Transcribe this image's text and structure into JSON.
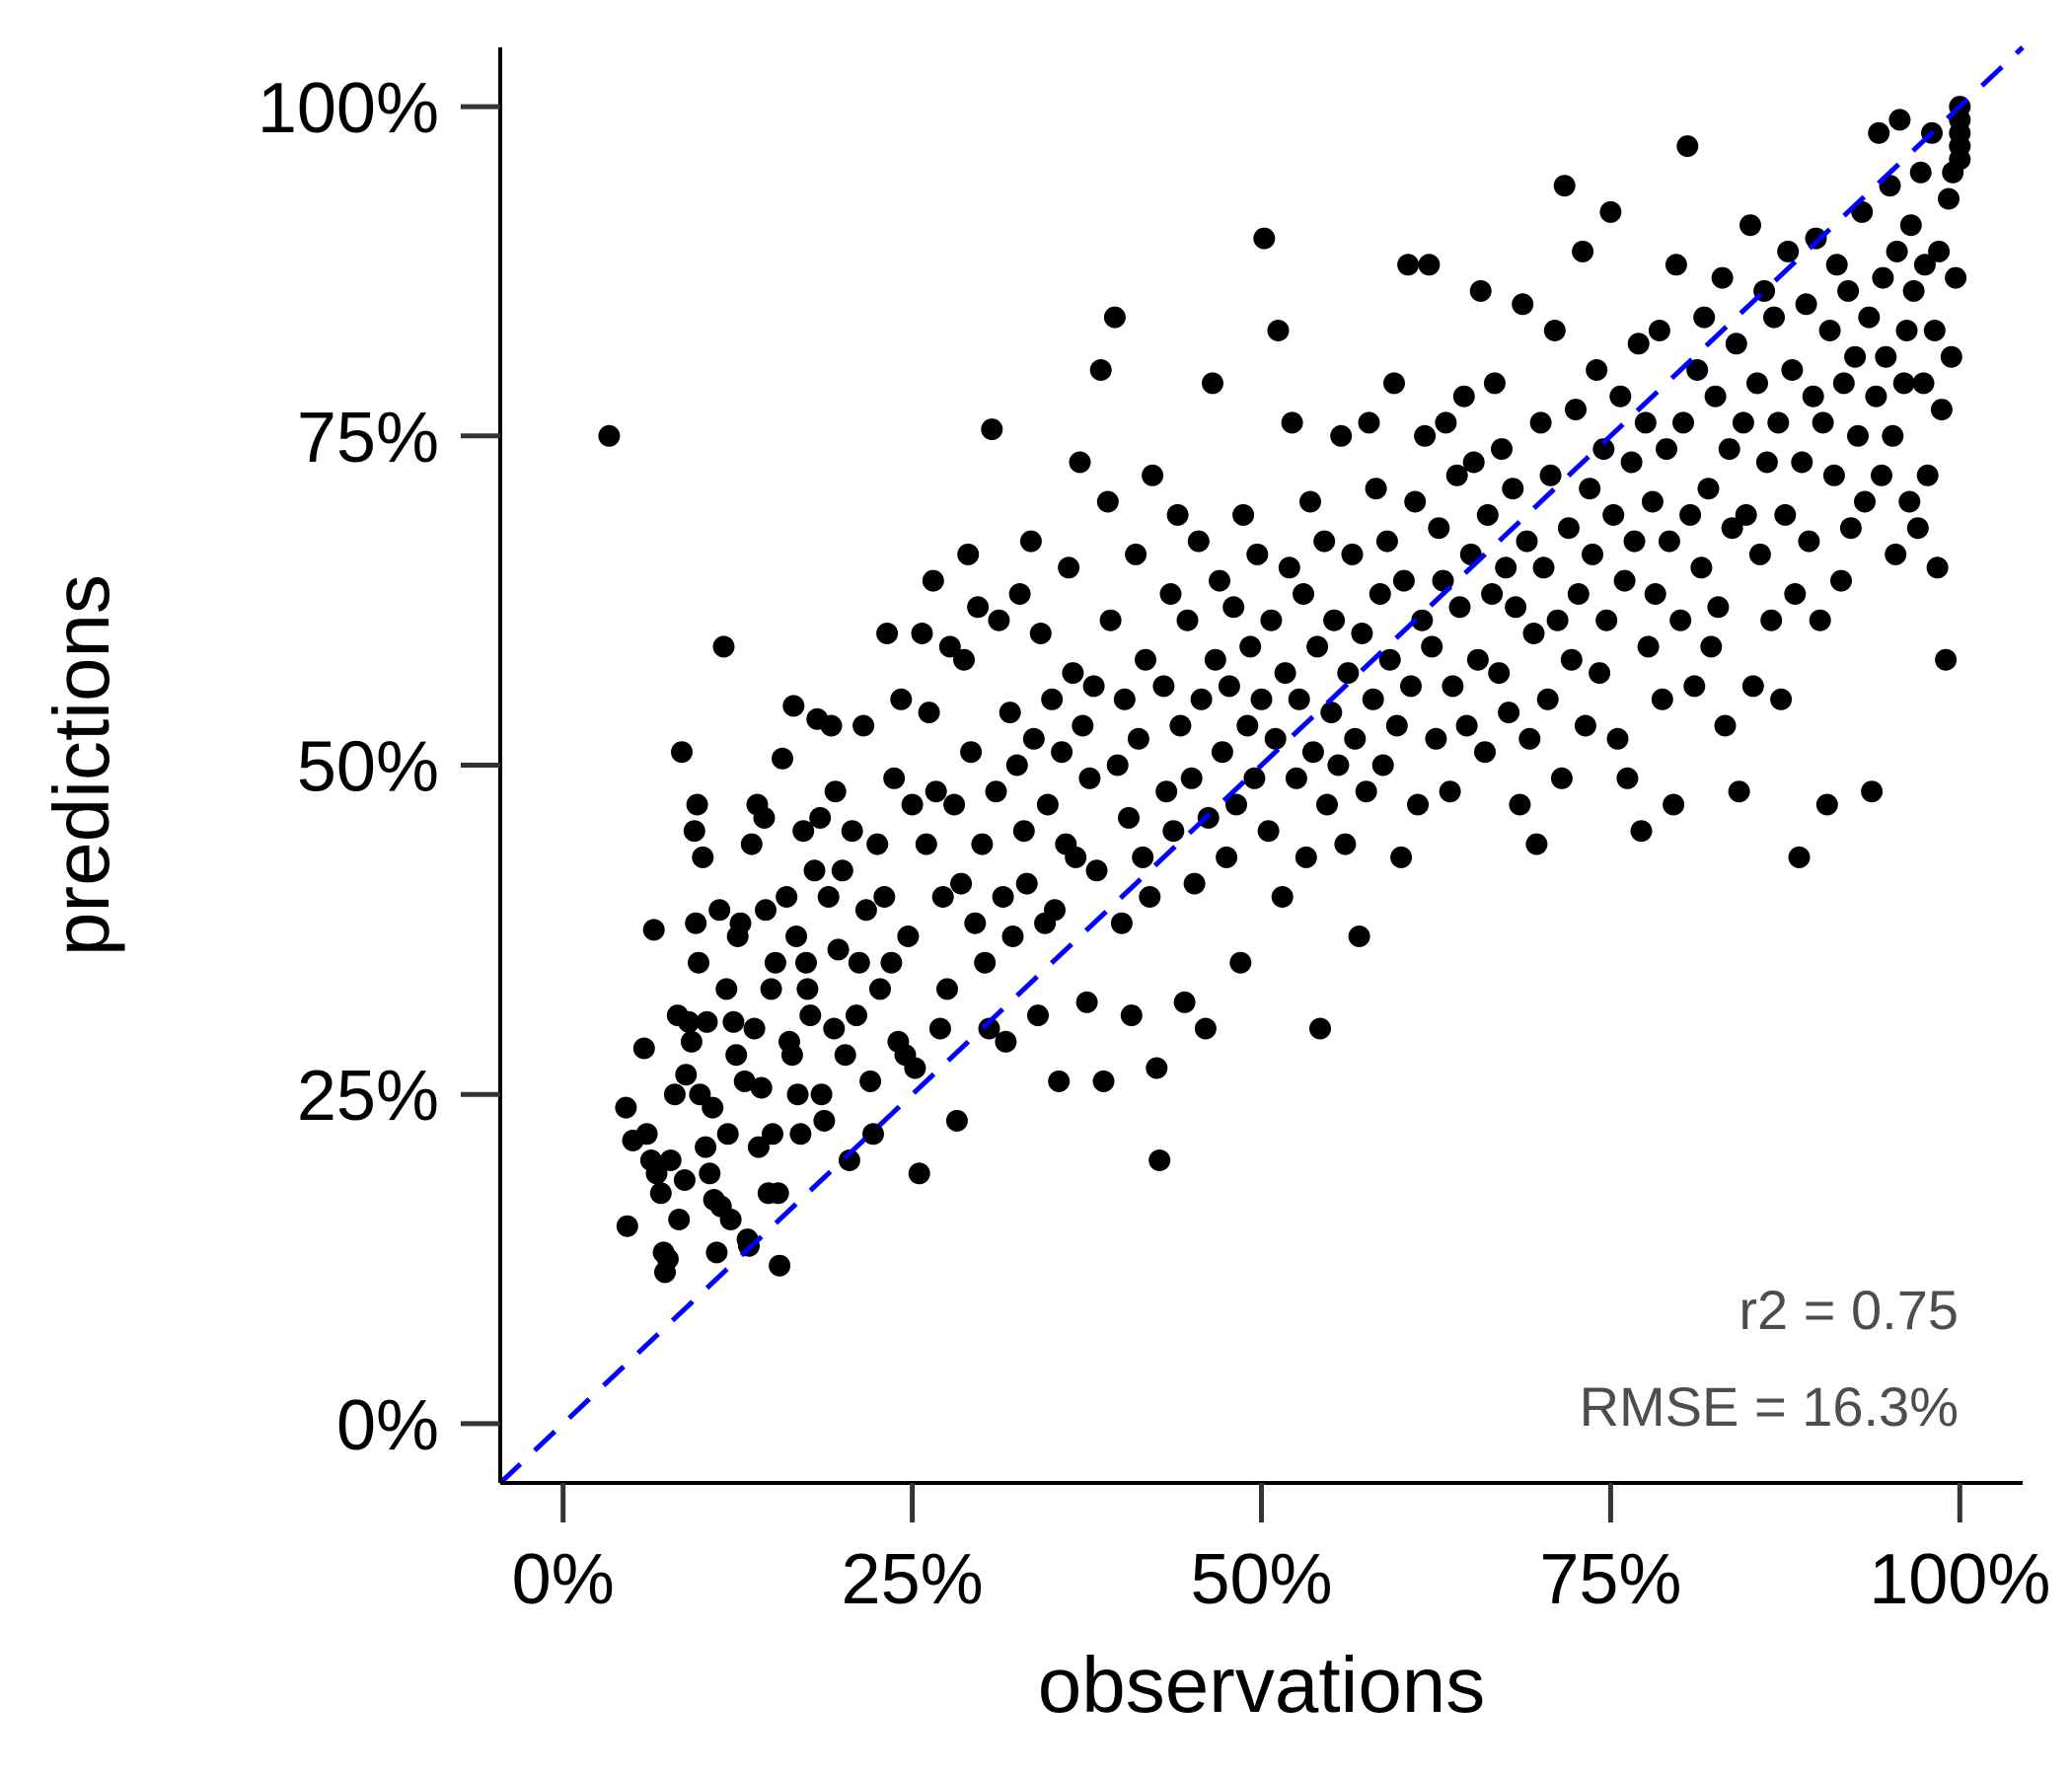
{
  "chart_data": {
    "type": "scatter",
    "xlabel": "observations",
    "ylabel": "predictions",
    "xlim": [
      -0.045,
      1.045
    ],
    "ylim": [
      -0.045,
      1.045
    ],
    "x_ticks": [
      {
        "value": 0,
        "label": "0%"
      },
      {
        "value": 0.25,
        "label": "25%"
      },
      {
        "value": 0.5,
        "label": "50%"
      },
      {
        "value": 0.75,
        "label": "75%"
      },
      {
        "value": 1,
        "label": "100%"
      }
    ],
    "y_ticks": [
      {
        "value": 0,
        "label": "0%"
      },
      {
        "value": 0.25,
        "label": "25%"
      },
      {
        "value": 0.5,
        "label": "50%"
      },
      {
        "value": 0.75,
        "label": "75%"
      },
      {
        "value": 1,
        "label": "100%"
      }
    ],
    "reference_line": {
      "style": "dashed",
      "color": "#0000ff",
      "slope": 1,
      "intercept": 0
    },
    "point_color": "#000000",
    "annotations": [
      "r2 = 0.75",
      "RMSE = 16.3%"
    ],
    "points": [
      [
        0.033,
        0.75
      ],
      [
        0.045,
        0.24
      ],
      [
        0.046,
        0.15
      ],
      [
        0.05,
        0.215
      ],
      [
        0.058,
        0.285
      ],
      [
        0.06,
        0.22
      ],
      [
        0.063,
        0.2
      ],
      [
        0.065,
        0.375
      ],
      [
        0.067,
        0.19
      ],
      [
        0.07,
        0.175
      ],
      [
        0.072,
        0.13
      ],
      [
        0.073,
        0.115
      ],
      [
        0.075,
        0.125
      ],
      [
        0.077,
        0.2
      ],
      [
        0.08,
        0.25
      ],
      [
        0.082,
        0.31
      ],
      [
        0.083,
        0.155
      ],
      [
        0.085,
        0.51
      ],
      [
        0.087,
        0.185
      ],
      [
        0.088,
        0.265
      ],
      [
        0.09,
        0.305
      ],
      [
        0.092,
        0.29
      ],
      [
        0.094,
        0.45
      ],
      [
        0.095,
        0.38
      ],
      [
        0.096,
        0.47
      ],
      [
        0.097,
        0.35
      ],
      [
        0.098,
        0.25
      ],
      [
        0.1,
        0.43
      ],
      [
        0.102,
        0.21
      ],
      [
        0.103,
        0.305
      ],
      [
        0.105,
        0.19
      ],
      [
        0.107,
        0.24
      ],
      [
        0.108,
        0.17
      ],
      [
        0.11,
        0.13
      ],
      [
        0.112,
        0.39
      ],
      [
        0.113,
        0.165
      ],
      [
        0.115,
        0.59
      ],
      [
        0.117,
        0.33
      ],
      [
        0.118,
        0.22
      ],
      [
        0.12,
        0.155
      ],
      [
        0.122,
        0.305
      ],
      [
        0.124,
        0.28
      ],
      [
        0.125,
        0.37
      ],
      [
        0.127,
        0.38
      ],
      [
        0.13,
        0.26
      ],
      [
        0.132,
        0.14
      ],
      [
        0.133,
        0.135
      ],
      [
        0.135,
        0.44
      ],
      [
        0.137,
        0.3
      ],
      [
        0.139,
        0.47
      ],
      [
        0.14,
        0.21
      ],
      [
        0.142,
        0.255
      ],
      [
        0.144,
        0.46
      ],
      [
        0.145,
        0.39
      ],
      [
        0.147,
        0.175
      ],
      [
        0.149,
        0.33
      ],
      [
        0.15,
        0.22
      ],
      [
        0.152,
        0.35
      ],
      [
        0.154,
        0.175
      ],
      [
        0.155,
        0.12
      ],
      [
        0.157,
        0.505
      ],
      [
        0.16,
        0.4
      ],
      [
        0.162,
        0.29
      ],
      [
        0.164,
        0.28
      ],
      [
        0.165,
        0.545
      ],
      [
        0.167,
        0.37
      ],
      [
        0.168,
        0.25
      ],
      [
        0.17,
        0.22
      ],
      [
        0.172,
        0.45
      ],
      [
        0.174,
        0.35
      ],
      [
        0.175,
        0.33
      ],
      [
        0.177,
        0.31
      ],
      [
        0.18,
        0.42
      ],
      [
        0.182,
        0.535
      ],
      [
        0.184,
        0.46
      ],
      [
        0.185,
        0.25
      ],
      [
        0.187,
        0.23
      ],
      [
        0.19,
        0.4
      ],
      [
        0.192,
        0.53
      ],
      [
        0.194,
        0.3
      ],
      [
        0.195,
        0.48
      ],
      [
        0.197,
        0.36
      ],
      [
        0.2,
        0.42
      ],
      [
        0.202,
        0.28
      ],
      [
        0.205,
        0.2
      ],
      [
        0.207,
        0.45
      ],
      [
        0.21,
        0.31
      ],
      [
        0.212,
        0.35
      ],
      [
        0.215,
        0.53
      ],
      [
        0.217,
        0.39
      ],
      [
        0.22,
        0.26
      ],
      [
        0.222,
        0.22
      ],
      [
        0.225,
        0.44
      ],
      [
        0.227,
        0.33
      ],
      [
        0.23,
        0.4
      ],
      [
        0.232,
        0.6
      ],
      [
        0.235,
        0.35
      ],
      [
        0.237,
        0.49
      ],
      [
        0.24,
        0.29
      ],
      [
        0.242,
        0.55
      ],
      [
        0.245,
        0.28
      ],
      [
        0.247,
        0.37
      ],
      [
        0.25,
        0.47
      ],
      [
        0.252,
        0.27
      ],
      [
        0.255,
        0.19
      ],
      [
        0.257,
        0.6
      ],
      [
        0.26,
        0.44
      ],
      [
        0.262,
        0.54
      ],
      [
        0.265,
        0.64
      ],
      [
        0.267,
        0.48
      ],
      [
        0.27,
        0.3
      ],
      [
        0.272,
        0.4
      ],
      [
        0.275,
        0.33
      ],
      [
        0.277,
        0.59
      ],
      [
        0.28,
        0.47
      ],
      [
        0.282,
        0.23
      ],
      [
        0.285,
        0.41
      ],
      [
        0.287,
        0.58
      ],
      [
        0.29,
        0.66
      ],
      [
        0.292,
        0.51
      ],
      [
        0.295,
        0.38
      ],
      [
        0.297,
        0.62
      ],
      [
        0.3,
        0.44
      ],
      [
        0.302,
        0.35
      ],
      [
        0.305,
        0.3
      ],
      [
        0.307,
        0.755
      ],
      [
        0.31,
        0.48
      ],
      [
        0.312,
        0.61
      ],
      [
        0.315,
        0.4
      ],
      [
        0.317,
        0.29
      ],
      [
        0.32,
        0.54
      ],
      [
        0.322,
        0.37
      ],
      [
        0.325,
        0.5
      ],
      [
        0.327,
        0.63
      ],
      [
        0.33,
        0.45
      ],
      [
        0.332,
        0.41
      ],
      [
        0.335,
        0.67
      ],
      [
        0.337,
        0.52
      ],
      [
        0.34,
        0.31
      ],
      [
        0.342,
        0.6
      ],
      [
        0.345,
        0.38
      ],
      [
        0.347,
        0.47
      ],
      [
        0.35,
        0.55
      ],
      [
        0.352,
        0.39
      ],
      [
        0.355,
        0.26
      ],
      [
        0.357,
        0.51
      ],
      [
        0.36,
        0.44
      ],
      [
        0.362,
        0.65
      ],
      [
        0.365,
        0.57
      ],
      [
        0.367,
        0.43
      ],
      [
        0.37,
        0.73
      ],
      [
        0.372,
        0.53
      ],
      [
        0.375,
        0.32
      ],
      [
        0.377,
        0.49
      ],
      [
        0.38,
        0.56
      ],
      [
        0.382,
        0.42
      ],
      [
        0.385,
        0.8
      ],
      [
        0.387,
        0.26
      ],
      [
        0.39,
        0.7
      ],
      [
        0.392,
        0.61
      ],
      [
        0.395,
        0.84
      ],
      [
        0.397,
        0.5
      ],
      [
        0.4,
        0.38
      ],
      [
        0.402,
        0.55
      ],
      [
        0.405,
        0.46
      ],
      [
        0.407,
        0.31
      ],
      [
        0.41,
        0.66
      ],
      [
        0.412,
        0.52
      ],
      [
        0.415,
        0.43
      ],
      [
        0.417,
        0.58
      ],
      [
        0.42,
        0.4
      ],
      [
        0.422,
        0.72
      ],
      [
        0.425,
        0.27
      ],
      [
        0.427,
        0.2
      ],
      [
        0.43,
        0.56
      ],
      [
        0.432,
        0.48
      ],
      [
        0.435,
        0.63
      ],
      [
        0.437,
        0.45
      ],
      [
        0.44,
        0.69
      ],
      [
        0.442,
        0.53
      ],
      [
        0.445,
        0.32
      ],
      [
        0.447,
        0.61
      ],
      [
        0.45,
        0.49
      ],
      [
        0.452,
        0.41
      ],
      [
        0.455,
        0.67
      ],
      [
        0.457,
        0.55
      ],
      [
        0.46,
        0.3
      ],
      [
        0.462,
        0.46
      ],
      [
        0.465,
        0.79
      ],
      [
        0.467,
        0.58
      ],
      [
        0.47,
        0.64
      ],
      [
        0.472,
        0.51
      ],
      [
        0.475,
        0.43
      ],
      [
        0.477,
        0.56
      ],
      [
        0.48,
        0.62
      ],
      [
        0.482,
        0.47
      ],
      [
        0.485,
        0.35
      ],
      [
        0.487,
        0.69
      ],
      [
        0.49,
        0.53
      ],
      [
        0.492,
        0.59
      ],
      [
        0.495,
        0.49
      ],
      [
        0.497,
        0.66
      ],
      [
        0.5,
        0.55
      ],
      [
        0.502,
        0.9
      ],
      [
        0.505,
        0.45
      ],
      [
        0.507,
        0.61
      ],
      [
        0.51,
        0.52
      ],
      [
        0.512,
        0.83
      ],
      [
        0.515,
        0.4
      ],
      [
        0.517,
        0.57
      ],
      [
        0.52,
        0.65
      ],
      [
        0.522,
        0.76
      ],
      [
        0.525,
        0.49
      ],
      [
        0.527,
        0.55
      ],
      [
        0.53,
        0.63
      ],
      [
        0.532,
        0.43
      ],
      [
        0.535,
        0.7
      ],
      [
        0.537,
        0.51
      ],
      [
        0.54,
        0.59
      ],
      [
        0.542,
        0.3
      ],
      [
        0.545,
        0.67
      ],
      [
        0.547,
        0.47
      ],
      [
        0.55,
        0.54
      ],
      [
        0.552,
        0.61
      ],
      [
        0.555,
        0.5
      ],
      [
        0.557,
        0.75
      ],
      [
        0.56,
        0.44
      ],
      [
        0.562,
        0.57
      ],
      [
        0.565,
        0.66
      ],
      [
        0.567,
        0.52
      ],
      [
        0.57,
        0.37
      ],
      [
        0.572,
        0.6
      ],
      [
        0.575,
        0.48
      ],
      [
        0.577,
        0.76
      ],
      [
        0.58,
        0.55
      ],
      [
        0.582,
        0.71
      ],
      [
        0.585,
        0.63
      ],
      [
        0.587,
        0.5
      ],
      [
        0.59,
        0.67
      ],
      [
        0.592,
        0.58
      ],
      [
        0.595,
        0.79
      ],
      [
        0.597,
        0.53
      ],
      [
        0.6,
        0.43
      ],
      [
        0.602,
        0.64
      ],
      [
        0.605,
        0.88
      ],
      [
        0.607,
        0.56
      ],
      [
        0.61,
        0.7
      ],
      [
        0.612,
        0.47
      ],
      [
        0.615,
        0.61
      ],
      [
        0.617,
        0.75
      ],
      [
        0.62,
        0.88
      ],
      [
        0.622,
        0.59
      ],
      [
        0.625,
        0.52
      ],
      [
        0.627,
        0.68
      ],
      [
        0.63,
        0.64
      ],
      [
        0.632,
        0.76
      ],
      [
        0.635,
        0.48
      ],
      [
        0.637,
        0.56
      ],
      [
        0.64,
        0.72
      ],
      [
        0.642,
        0.62
      ],
      [
        0.645,
        0.78
      ],
      [
        0.647,
        0.53
      ],
      [
        0.65,
        0.66
      ],
      [
        0.652,
        0.73
      ],
      [
        0.655,
        0.58
      ],
      [
        0.657,
        0.86
      ],
      [
        0.66,
        0.51
      ],
      [
        0.662,
        0.69
      ],
      [
        0.665,
        0.63
      ],
      [
        0.667,
        0.79
      ],
      [
        0.67,
        0.57
      ],
      [
        0.672,
        0.74
      ],
      [
        0.675,
        0.65
      ],
      [
        0.677,
        0.54
      ],
      [
        0.68,
        0.71
      ],
      [
        0.682,
        0.62
      ],
      [
        0.685,
        0.47
      ],
      [
        0.687,
        0.85
      ],
      [
        0.69,
        0.67
      ],
      [
        0.692,
        0.52
      ],
      [
        0.695,
        0.6
      ],
      [
        0.697,
        0.44
      ],
      [
        0.7,
        0.76
      ],
      [
        0.702,
        0.65
      ],
      [
        0.705,
        0.55
      ],
      [
        0.707,
        0.72
      ],
      [
        0.71,
        0.83
      ],
      [
        0.712,
        0.61
      ],
      [
        0.715,
        0.49
      ],
      [
        0.717,
        0.94
      ],
      [
        0.72,
        0.68
      ],
      [
        0.722,
        0.58
      ],
      [
        0.725,
        0.77
      ],
      [
        0.727,
        0.63
      ],
      [
        0.73,
        0.89
      ],
      [
        0.732,
        0.53
      ],
      [
        0.735,
        0.71
      ],
      [
        0.737,
        0.66
      ],
      [
        0.74,
        0.8
      ],
      [
        0.742,
        0.57
      ],
      [
        0.745,
        0.74
      ],
      [
        0.747,
        0.61
      ],
      [
        0.75,
        0.92
      ],
      [
        0.752,
        0.69
      ],
      [
        0.755,
        0.52
      ],
      [
        0.757,
        0.78
      ],
      [
        0.76,
        0.64
      ],
      [
        0.762,
        0.49
      ],
      [
        0.765,
        0.73
      ],
      [
        0.767,
        0.67
      ],
      [
        0.77,
        0.82
      ],
      [
        0.772,
        0.45
      ],
      [
        0.775,
        0.76
      ],
      [
        0.777,
        0.59
      ],
      [
        0.78,
        0.7
      ],
      [
        0.782,
        0.63
      ],
      [
        0.785,
        0.83
      ],
      [
        0.787,
        0.55
      ],
      [
        0.79,
        0.74
      ],
      [
        0.792,
        0.67
      ],
      [
        0.795,
        0.47
      ],
      [
        0.797,
        0.88
      ],
      [
        0.8,
        0.61
      ],
      [
        0.802,
        0.76
      ],
      [
        0.805,
        0.97
      ],
      [
        0.807,
        0.69
      ],
      [
        0.81,
        0.56
      ],
      [
        0.812,
        0.8
      ],
      [
        0.815,
        0.65
      ],
      [
        0.817,
        0.84
      ],
      [
        0.82,
        0.71
      ],
      [
        0.822,
        0.59
      ],
      [
        0.825,
        0.78
      ],
      [
        0.827,
        0.62
      ],
      [
        0.83,
        0.87
      ],
      [
        0.832,
        0.53
      ],
      [
        0.835,
        0.74
      ],
      [
        0.837,
        0.68
      ],
      [
        0.84,
        0.82
      ],
      [
        0.842,
        0.48
      ],
      [
        0.845,
        0.76
      ],
      [
        0.847,
        0.69
      ],
      [
        0.85,
        0.91
      ],
      [
        0.852,
        0.56
      ],
      [
        0.855,
        0.79
      ],
      [
        0.857,
        0.66
      ],
      [
        0.86,
        0.86
      ],
      [
        0.862,
        0.73
      ],
      [
        0.865,
        0.61
      ],
      [
        0.867,
        0.84
      ],
      [
        0.87,
        0.76
      ],
      [
        0.872,
        0.55
      ],
      [
        0.875,
        0.69
      ],
      [
        0.877,
        0.89
      ],
      [
        0.88,
        0.8
      ],
      [
        0.882,
        0.63
      ],
      [
        0.885,
        0.43
      ],
      [
        0.887,
        0.73
      ],
      [
        0.89,
        0.85
      ],
      [
        0.892,
        0.67
      ],
      [
        0.895,
        0.78
      ],
      [
        0.897,
        0.9
      ],
      [
        0.9,
        0.61
      ],
      [
        0.902,
        0.76
      ],
      [
        0.905,
        0.47
      ],
      [
        0.907,
        0.83
      ],
      [
        0.91,
        0.72
      ],
      [
        0.912,
        0.88
      ],
      [
        0.915,
        0.64
      ],
      [
        0.917,
        0.79
      ],
      [
        0.92,
        0.86
      ],
      [
        0.922,
        0.68
      ],
      [
        0.925,
        0.81
      ],
      [
        0.927,
        0.75
      ],
      [
        0.93,
        0.92
      ],
      [
        0.932,
        0.7
      ],
      [
        0.935,
        0.84
      ],
      [
        0.937,
        0.48
      ],
      [
        0.94,
        0.78
      ],
      [
        0.942,
        0.98
      ],
      [
        0.944,
        0.72
      ],
      [
        0.945,
        0.87
      ],
      [
        0.947,
        0.81
      ],
      [
        0.95,
        0.94
      ],
      [
        0.952,
        0.75
      ],
      [
        0.954,
        0.66
      ],
      [
        0.955,
        0.89
      ],
      [
        0.957,
        0.99
      ],
      [
        0.96,
        0.79
      ],
      [
        0.962,
        0.83
      ],
      [
        0.964,
        0.7
      ],
      [
        0.965,
        0.91
      ],
      [
        0.967,
        0.86
      ],
      [
        0.97,
        0.68
      ],
      [
        0.972,
        0.95
      ],
      [
        0.974,
        0.79
      ],
      [
        0.975,
        0.88
      ],
      [
        0.977,
        0.72
      ],
      [
        0.98,
        0.98
      ],
      [
        0.982,
        0.83
      ],
      [
        0.984,
        0.65
      ],
      [
        0.985,
        0.89
      ],
      [
        0.987,
        0.77
      ],
      [
        0.99,
        0.58
      ],
      [
        0.992,
        0.93
      ],
      [
        0.994,
        0.81
      ],
      [
        0.995,
        0.95
      ],
      [
        0.997,
        0.87
      ],
      [
        1.0,
        1.0
      ],
      [
        1.0,
        0.98
      ],
      [
        1.0,
        0.97
      ],
      [
        1.0,
        0.99
      ],
      [
        1.0,
        0.96
      ]
    ]
  }
}
